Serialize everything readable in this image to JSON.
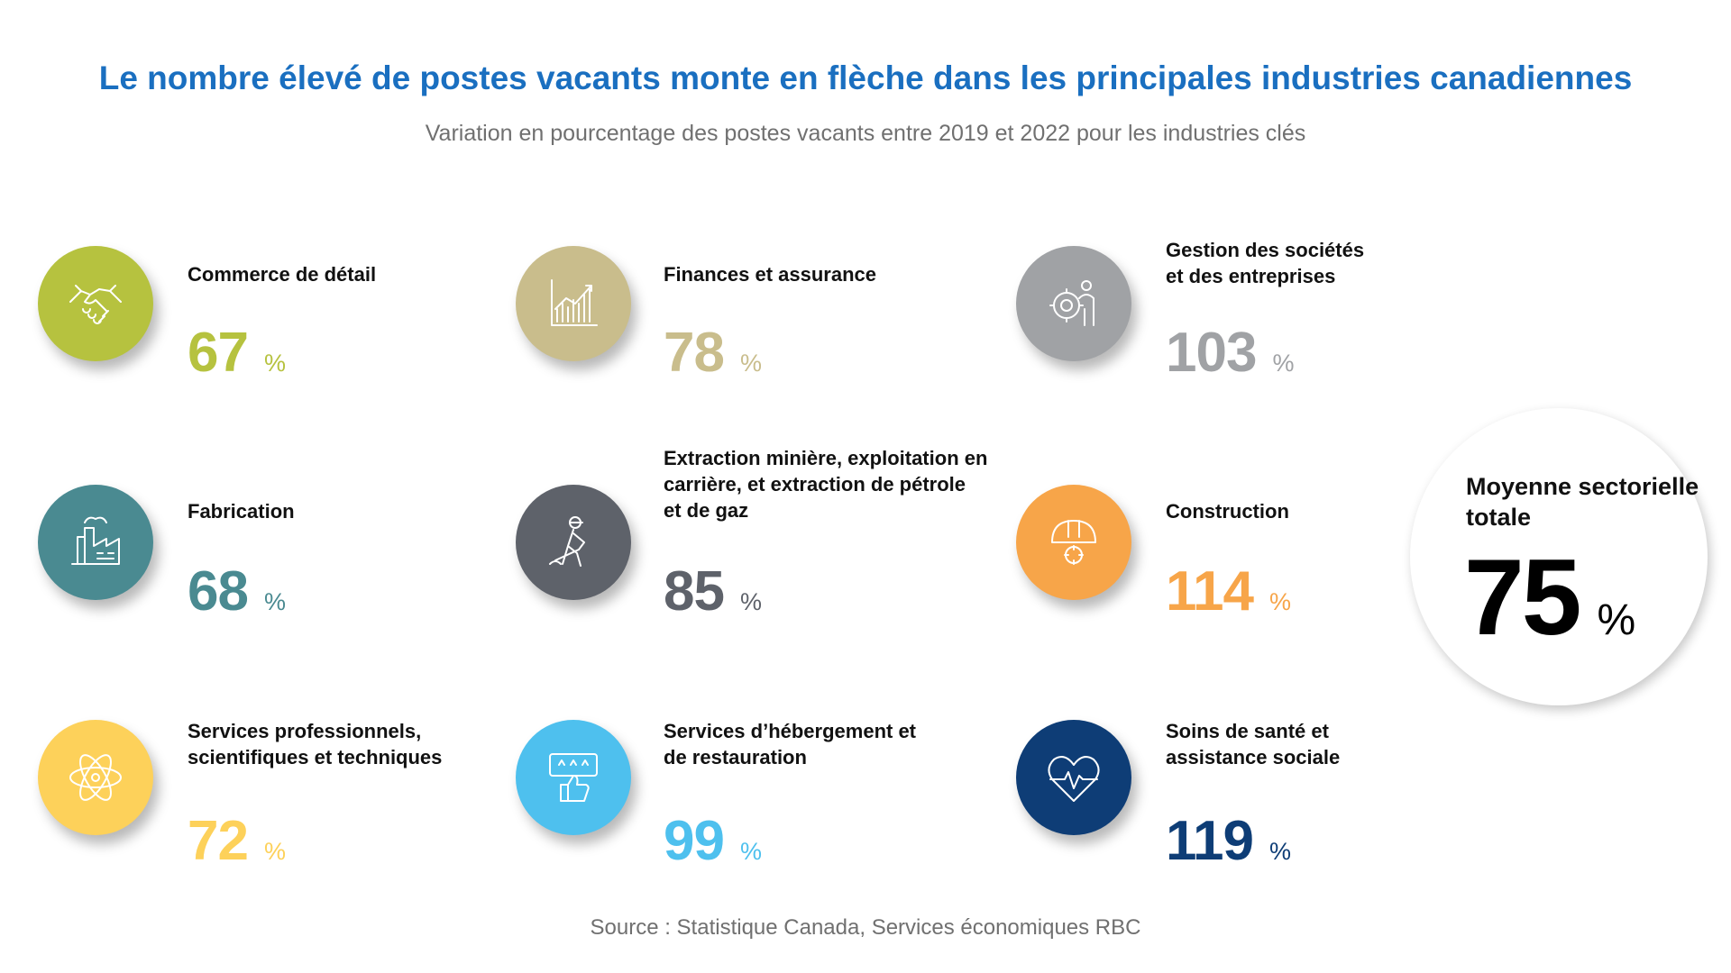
{
  "header": {
    "title": "Le nombre élevé de postes vacants monte en flèche dans les principales industries canadiennes",
    "subtitle": "Variation en pourcentage des postes vacants entre 2019 et 2022 pour les industries clés"
  },
  "industries": [
    {
      "label": "Commerce de détail",
      "value": "67",
      "unit": "%",
      "color": "#b6c23f",
      "icon": "handshake-icon"
    },
    {
      "label": "Finances et assurance",
      "value": "78",
      "unit": "%",
      "color": "#c9bd8c",
      "icon": "growth-chart-icon"
    },
    {
      "label": "Gestion des sociétés et des entreprises",
      "value": "103",
      "unit": "%",
      "color": "#a0a2a5",
      "icon": "manager-gear-icon"
    },
    {
      "label": "Fabrication",
      "value": "68",
      "unit": "%",
      "color": "#4a8a91",
      "icon": "factory-icon"
    },
    {
      "label": "Extraction minière, exploitation en carrière, et extraction de pétrole et de gaz",
      "value": "85",
      "unit": "%",
      "color": "#5e626a",
      "icon": "miner-icon"
    },
    {
      "label": "Construction",
      "value": "114",
      "unit": "%",
      "color": "#f7a549",
      "icon": "hard-hat-icon"
    },
    {
      "label": "Services professionnels, scientifiques et techniques",
      "value": "72",
      "unit": "%",
      "color": "#fdd15a",
      "icon": "atom-icon"
    },
    {
      "label": "Services d’hébergement et de restauration",
      "value": "99",
      "unit": "%",
      "color": "#4ec0ee",
      "icon": "thumbs-up-rating-icon"
    },
    {
      "label": "Soins de santé et assistance sociale",
      "value": "119",
      "unit": "%",
      "color": "#0e3d76",
      "icon": "heart-pulse-icon"
    }
  ],
  "average": {
    "label": "Moyenne sectorielle totale",
    "value": "75",
    "unit": "%"
  },
  "footer": {
    "source": "Source : Statistique Canada, Services économiques RBC"
  },
  "colors": {
    "title": "#1a6fc0",
    "text_gray": "#707070"
  }
}
